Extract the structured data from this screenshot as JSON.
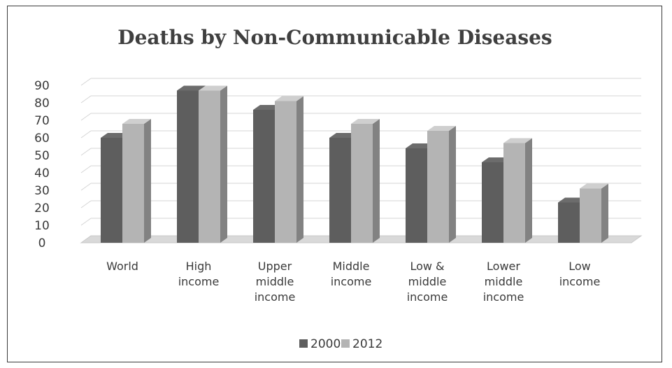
{
  "chart_data": {
    "type": "bar",
    "title": "Deaths by Non-Communicable Diseases",
    "categories": [
      [
        "World"
      ],
      [
        "High",
        "income"
      ],
      [
        "Upper",
        "middle",
        "income"
      ],
      [
        "Middle",
        "income"
      ],
      [
        "Low &",
        "middle",
        "income"
      ],
      [
        "Lower",
        "middle",
        "income"
      ],
      [
        "Low",
        "income"
      ]
    ],
    "series": [
      {
        "name": "2000",
        "color": "#5e5e5e",
        "values": [
          60,
          87,
          76,
          60,
          54,
          46,
          23
        ]
      },
      {
        "name": "2012",
        "color": "#b4b4b4",
        "values": [
          68,
          87,
          81,
          68,
          64,
          57,
          31
        ]
      }
    ],
    "yticks": [
      0,
      10,
      20,
      30,
      40,
      50,
      60,
      70,
      80,
      90
    ],
    "ylim": [
      0,
      90
    ],
    "grid": true,
    "legend_position": "bottom",
    "style": "3d-clustered-column"
  }
}
